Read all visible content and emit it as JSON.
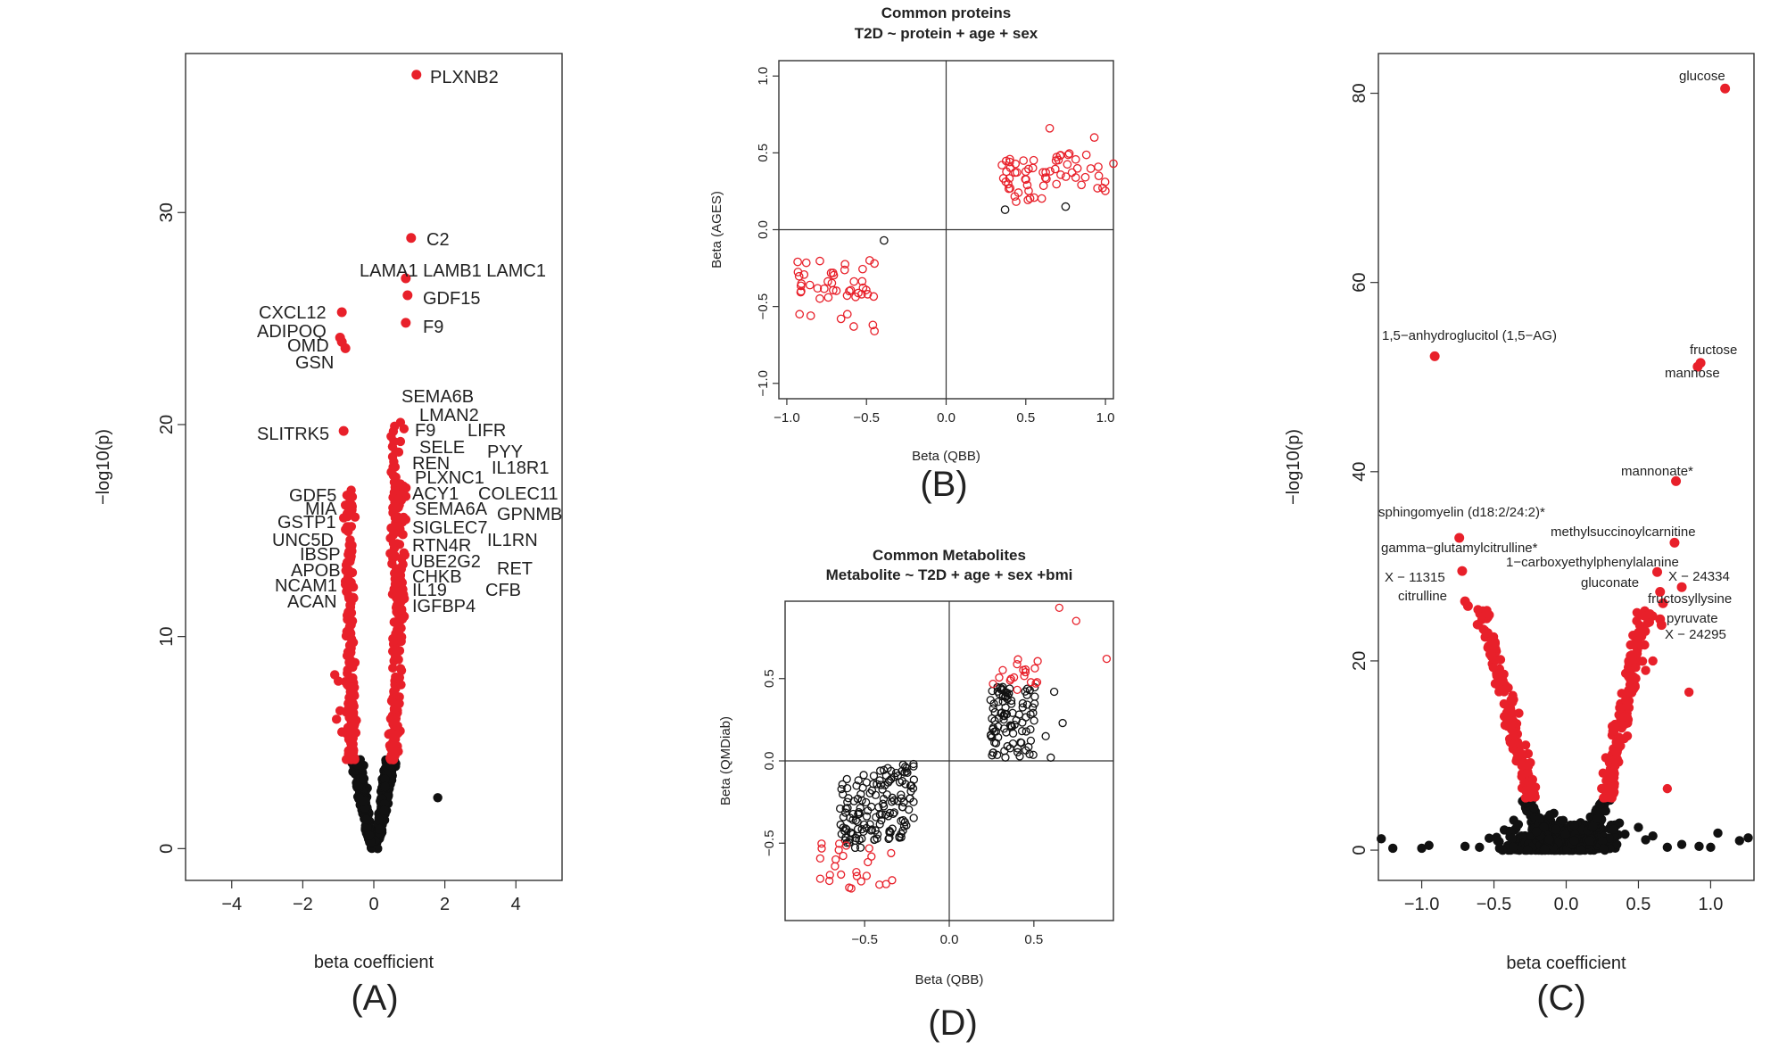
{
  "chart_data": [
    {
      "panel": "(A)",
      "type": "scatter",
      "title": "",
      "xlabel": "beta coefficient",
      "ylabel": "−log10(p)",
      "xlim": [
        -5.3,
        5.3
      ],
      "ylim": [
        -1.5,
        37.5
      ],
      "xticks": [
        -4,
        -2,
        0,
        2,
        4
      ],
      "xtick_labels": [
        "−4",
        "−2",
        "0",
        "2",
        "4"
      ],
      "yticks": [
        0,
        10,
        20,
        30
      ],
      "ytick_labels": [
        "0",
        "10",
        "20",
        "30"
      ],
      "colors": {
        "significant": "#e8202a",
        "nonsignificant": "#111111"
      },
      "labeled_points": [
        {
          "x": 1.2,
          "y": 36.5,
          "label": "PLXNB2"
        },
        {
          "x": 1.05,
          "y": 28.8,
          "label": "C2"
        },
        {
          "x": 0.9,
          "y": 26.9,
          "label": "LAMA1 LAMB1  LAMC1"
        },
        {
          "x": 0.95,
          "y": 26.1,
          "label": "GDF15"
        },
        {
          "x": 0.9,
          "y": 24.8,
          "label": "F9"
        },
        {
          "x": -0.9,
          "y": 25.3,
          "label": "CXCL12"
        },
        {
          "x": -0.95,
          "y": 24.1,
          "label": "ADIPOQ"
        },
        {
          "x": -0.9,
          "y": 23.9,
          "label": "OMD"
        },
        {
          "x": -0.8,
          "y": 23.6,
          "label": "GSN"
        },
        {
          "x": -0.85,
          "y": 19.7,
          "label": "SLITRK5"
        }
      ],
      "label_stacks": {
        "right": [
          "SEMA6B",
          "LMAN2",
          "F9",
          "LIFR",
          "SELE",
          "PYY",
          "REN",
          "IL18R1",
          "PLXNC1",
          "ACY1",
          "COLEC11",
          "SEMA6A",
          "GPNMB",
          "SIGLEC7",
          "IL1RN",
          "RTN4R",
          "UBE2G2",
          "RET",
          "CHKB",
          "CFB",
          "IL19",
          "IGFBP4"
        ],
        "left": [
          "GDF5",
          "MIA",
          "GSTP1",
          "UNC5D",
          "IBSP",
          "APOB",
          "NCAM1",
          "ACAN"
        ]
      },
      "extra_points": [
        {
          "x": 1.8,
          "y": 2.4,
          "group": "nonsignificant"
        }
      ],
      "threshold": 4.2
    },
    {
      "panel": "(B)",
      "type": "scatter",
      "title": "Common proteins",
      "subtitle": "T2D ~ protein + age + sex",
      "xlabel": "Beta (QBB)",
      "ylabel": "Beta (AGES)",
      "xlim": [
        -1.05,
        1.05
      ],
      "ylim": [
        -1.1,
        1.1
      ],
      "xticks": [
        -1.0,
        -0.5,
        0.0,
        0.5,
        1.0
      ],
      "xtick_labels": [
        "−1.0",
        "−0.5",
        "0.0",
        "0.5",
        "1.0"
      ],
      "yticks": [
        -1.0,
        -0.5,
        0.0,
        0.5,
        1.0
      ],
      "ytick_labels": [
        "−1.0",
        "−0.5",
        "0.0",
        "0.5",
        "1.0"
      ],
      "colors": {
        "red": "#e8202a",
        "black": "#111111"
      },
      "black_points": [
        [
          -0.39,
          -0.07
        ],
        [
          0.37,
          0.13
        ],
        [
          0.75,
          0.15
        ]
      ]
    },
    {
      "panel": "(D)",
      "type": "scatter",
      "title": "Common Metabolites",
      "subtitle": "Metabolite ~ T2D + age + sex +bmi",
      "xlabel": "Beta (QBB)",
      "ylabel": "Beta (QMDiab)",
      "xlim": [
        -0.97,
        0.97
      ],
      "ylim": [
        -0.97,
        0.97
      ],
      "xticks": [
        -0.5,
        0.0,
        0.5
      ],
      "xtick_labels": [
        "−0.5",
        "0.0",
        "0.5"
      ],
      "yticks": [
        -0.5,
        0.0,
        0.5
      ],
      "ytick_labels": [
        "−0.5",
        "0.0",
        "0.5"
      ],
      "colors": {
        "red": "#e8202a",
        "black": "#111111"
      },
      "red_points": [
        [
          0.65,
          0.93
        ],
        [
          0.75,
          0.85
        ],
        [
          0.93,
          0.62
        ]
      ]
    },
    {
      "panel": "(C)",
      "type": "scatter",
      "title": "",
      "xlabel": "beta coefficient",
      "ylabel": "−log10(p)",
      "xlim": [
        -1.3,
        1.3
      ],
      "ylim": [
        -3.2,
        84.2
      ],
      "xticks": [
        -1.0,
        -0.5,
        0.0,
        0.5,
        1.0
      ],
      "xtick_labels": [
        "−1.0",
        "−0.5",
        "0.0",
        "0.5",
        "1.0"
      ],
      "yticks": [
        0,
        20,
        40,
        60,
        80
      ],
      "ytick_labels": [
        "0",
        "20",
        "40",
        "60",
        "80"
      ],
      "colors": {
        "significant": "#e8202a",
        "nonsignificant": "#111111"
      },
      "labeled_points": [
        {
          "x": 1.1,
          "y": 80.5,
          "label": "glucose"
        },
        {
          "x": -0.91,
          "y": 52.2,
          "label": "1,5−anhydroglucitol (1,5−AG)"
        },
        {
          "x": 0.93,
          "y": 51.5,
          "label": "fructose"
        },
        {
          "x": 0.91,
          "y": 51.1,
          "label": "mannose"
        },
        {
          "x": 0.76,
          "y": 39.0,
          "label": "mannonate*"
        },
        {
          "x": -0.74,
          "y": 33.0,
          "label": "sphingomyelin (d18:2/24:2)*"
        },
        {
          "x": 0.75,
          "y": 32.5,
          "label": "methylsuccinoylcarnitine"
        },
        {
          "x": -0.72,
          "y": 29.5,
          "label": "gamma−glutamylcitrulline*"
        },
        {
          "x": 0.63,
          "y": 29.4,
          "label": "1−carboxyethylphenylalanine"
        },
        {
          "x": 0.8,
          "y": 27.8,
          "label": "X − 24334"
        },
        {
          "x": -0.7,
          "y": 26.3,
          "label": "X − 11315"
        },
        {
          "x": 0.65,
          "y": 27.3,
          "label": "gluconate"
        },
        {
          "x": -0.68,
          "y": 25.8,
          "label": "citrulline"
        },
        {
          "x": 0.67,
          "y": 26.1,
          "label": "fructosyllysine"
        },
        {
          "x": 0.65,
          "y": 24.4,
          "label": "pyruvate"
        },
        {
          "x": 0.66,
          "y": 23.8,
          "label": "X − 24295"
        }
      ],
      "extra_points": [
        {
          "x": 0.85,
          "y": 16.7,
          "group": "significant"
        },
        {
          "x": 0.6,
          "y": 20.0,
          "group": "significant"
        },
        {
          "x": 0.55,
          "y": 19.0,
          "group": "significant"
        },
        {
          "x": 0.7,
          "y": 6.5,
          "group": "significant"
        }
      ],
      "threshold": 5.5
    }
  ],
  "panel_letters": {
    "a": "(A)",
    "b": "(B)",
    "c": "(C)",
    "d": "(D)"
  }
}
